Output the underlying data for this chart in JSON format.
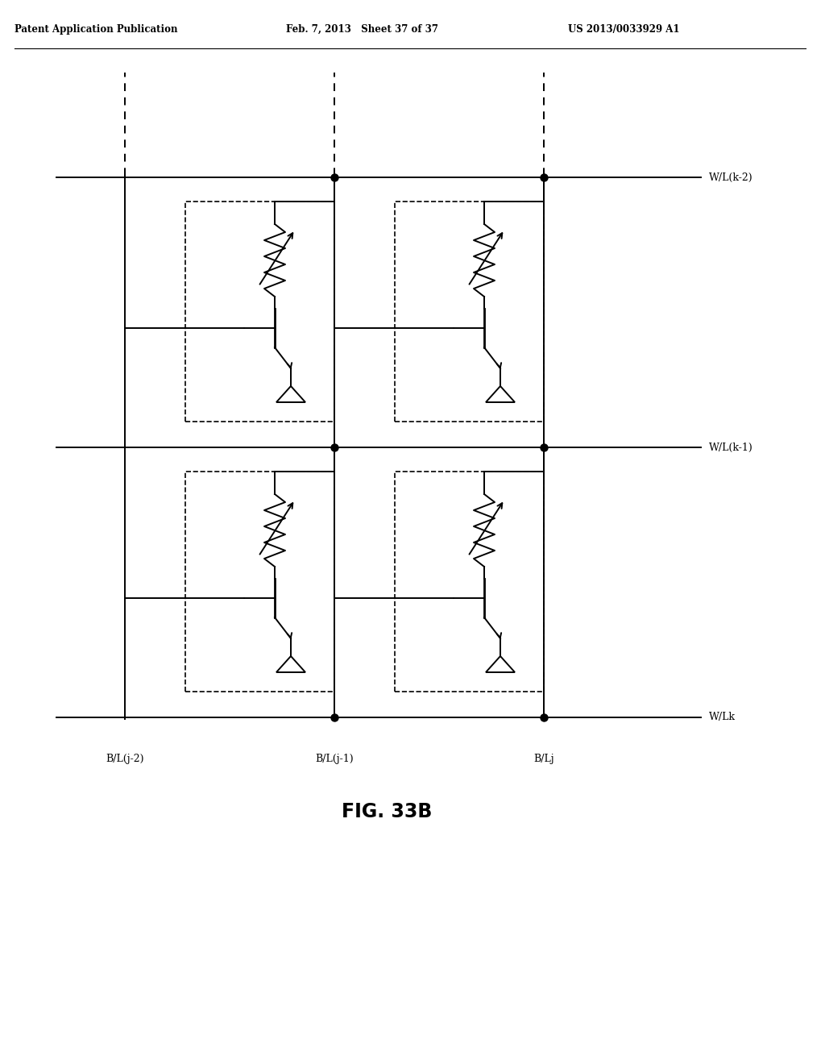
{
  "header_left": "Patent Application Publication",
  "header_mid": "Feb. 7, 2013   Sheet 37 of 37",
  "header_right": "US 2013/0033929 A1",
  "fig_label": "FIG. 33B",
  "wl_labels": [
    "W/L(k-2)",
    "W/L(k-1)",
    "W/Lk"
  ],
  "bl_labels": [
    "B/L(j-2)",
    "B/L(j-1)",
    "B/Lj"
  ],
  "bg_color": "#ffffff",
  "lc": "#000000"
}
